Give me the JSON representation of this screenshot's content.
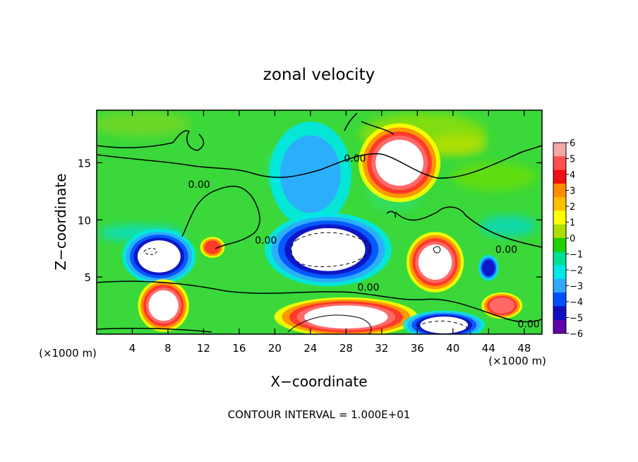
{
  "chart_data": {
    "type": "heatmap",
    "title": "zonal velocity",
    "xlabel": "X−coordinate",
    "ylabel": "Z−coordinate",
    "x_unit": "(×1000 m)",
    "y_unit": "(×1000 m)",
    "xlim": [
      0,
      50
    ],
    "ylim": [
      0,
      19.6
    ],
    "x_ticks": [
      4,
      8,
      12,
      16,
      20,
      24,
      28,
      32,
      36,
      40,
      44,
      48
    ],
    "y_ticks": [
      5,
      10,
      15
    ],
    "colorbar": {
      "min": -6,
      "max": 6,
      "ticks": [
        6,
        5,
        4,
        3,
        2,
        1,
        0,
        -1,
        -2,
        -3,
        -4,
        -5,
        -6
      ],
      "colors": [
        "#f4a7a7",
        "#ff5050",
        "#f01010",
        "#ff8c00",
        "#ffc000",
        "#ffff00",
        "#a8e000",
        "#20d000",
        "#00e090",
        "#00e8e8",
        "#30a8ff",
        "#0050ff",
        "#1010c0",
        "#6000a8"
      ]
    },
    "contour_labels": [
      {
        "text": "0.00",
        "x": 29,
        "y": 15.1
      },
      {
        "text": "0.00",
        "x": 11.5,
        "y": 12.8
      },
      {
        "text": "0.00",
        "x": 19,
        "y": 7.9
      },
      {
        "text": "0.00",
        "x": 46,
        "y": 7.1
      },
      {
        "text": "0.00",
        "x": 30.5,
        "y": 3.8
      },
      {
        "text": "0.00",
        "x": 48.5,
        "y": 0.6
      }
    ],
    "features": [
      {
        "sign": "positive",
        "peak": 6,
        "x": 34,
        "y": 15,
        "rx": 4,
        "ry": 3
      },
      {
        "sign": "negative",
        "peak": -3,
        "x": 24,
        "y": 14,
        "rx": 4,
        "ry": 4
      },
      {
        "sign": "negative",
        "peak": -6,
        "x": 7,
        "y": 6.8,
        "rx": 3.6,
        "ry": 2.1
      },
      {
        "sign": "negative",
        "peak": -6,
        "x": 26,
        "y": 7.4,
        "rx": 6.2,
        "ry": 2.8
      },
      {
        "sign": "positive",
        "peak": 6,
        "x": 38,
        "y": 6.3,
        "rx": 2.8,
        "ry": 2.3
      },
      {
        "sign": "negative",
        "peak": -5,
        "x": 44,
        "y": 5.8,
        "rx": 1,
        "ry": 1
      },
      {
        "sign": "positive",
        "peak": 6,
        "x": 7.5,
        "y": 2.5,
        "rx": 2.5,
        "ry": 2
      },
      {
        "sign": "positive",
        "peak": 6,
        "x": 28,
        "y": 1.5,
        "rx": 7,
        "ry": 1.5
      },
      {
        "sign": "negative",
        "peak": -6,
        "x": 39,
        "y": 0.8,
        "rx": 4,
        "ry": 1.1
      },
      {
        "sign": "positive",
        "peak": 5,
        "x": 45.5,
        "y": 2.5,
        "rx": 2,
        "ry": 1
      },
      {
        "sign": "positive",
        "peak": 4,
        "x": 13,
        "y": 7.6,
        "rx": 1.2,
        "ry": 0.8
      }
    ],
    "footer": "CONTOUR INTERVAL = 1.000E+01"
  }
}
